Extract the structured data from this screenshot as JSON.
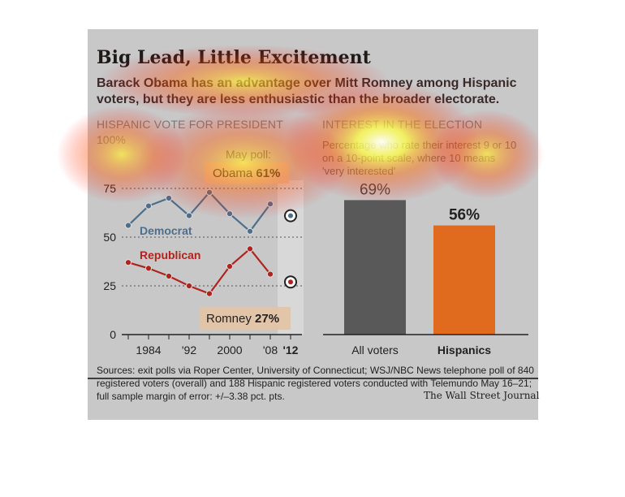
{
  "title": "Big Lead, Little Excitement",
  "subtitle": "Barack Obama has an advantage over Mitt Romney among Hispanic voters, but they are less enthusiastic than the broader electorate.",
  "left_section_label": "HISPANIC VOTE FOR PRESIDENT",
  "right_section_label": "INTEREST IN THE ELECTION",
  "right_note": "Percentage who rate their interest 9 or 10 on a 10-point scale, where 10 means 'very interested'",
  "source": "Sources: exit polls via Roper Center, University of Connecticut; WSJ/NBC News telephone poll of 840 registered voters (overall) and 188 Hispanic registered voters conducted with Telemundo May 16–21; full sample margin of error: +/–3.38 pct. pts.",
  "credit": "The Wall Street Journal",
  "colors": {
    "democrat": "#4d6f8c",
    "republican": "#b0231f",
    "all_voters_bar": "#595959",
    "hispanics_bar": "#e06b1f",
    "card_bg": "#c8c8c8"
  },
  "chart_data": [
    {
      "type": "line",
      "title": "HISPANIC VOTE FOR PRESIDENT",
      "ylim": [
        0,
        100
      ],
      "y_ticks": [
        0,
        25,
        50,
        75
      ],
      "y_tick_labels": [
        "0",
        "25",
        "50",
        "75"
      ],
      "y_top_label": "100%",
      "x_tick_labels": [
        "1984",
        "'92",
        "2000",
        "'08",
        "'12"
      ],
      "x": [
        1980,
        1984,
        1988,
        1992,
        1996,
        2000,
        2004,
        2008
      ],
      "series": [
        {
          "name": "Democrat",
          "values": [
            56,
            66,
            70,
            61,
            73,
            62,
            53,
            67
          ]
        },
        {
          "name": "Republican",
          "values": [
            37,
            34,
            30,
            25,
            21,
            35,
            44,
            31
          ]
        }
      ],
      "may_poll": {
        "label": "May poll:",
        "x": 2012,
        "obama_label": "Obama",
        "obama_value_label": "61%",
        "obama": 61,
        "romney_label": "Romney",
        "romney_value_label": "27%",
        "romney": 27
      },
      "grid": true
    },
    {
      "type": "bar",
      "title": "INTEREST IN THE ELECTION",
      "categories": [
        "All voters",
        "Hispanics"
      ],
      "values": [
        69,
        56
      ],
      "value_labels": [
        "69%",
        "56%"
      ],
      "ylim": [
        0,
        100
      ]
    }
  ]
}
